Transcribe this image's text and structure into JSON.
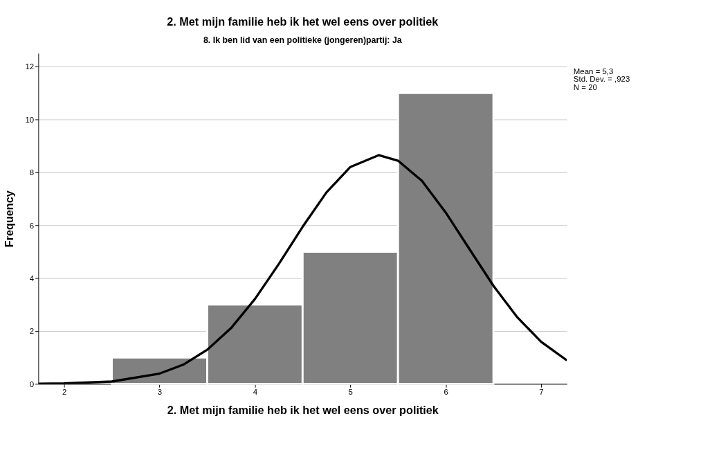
{
  "chart_data": {
    "type": "histogram",
    "title": "2. Met mijn familie heb ik het wel eens over politiek",
    "subtitle": "8. Ik ben lid van een politieke (jongeren)partij: Ja",
    "xlabel": "2. Met mijn familie heb ik het wel eens over politiek",
    "ylabel": "Frequency",
    "bins": [
      2.5,
      3.5,
      4.5,
      5.5,
      6.5
    ],
    "values": [
      1,
      3,
      5,
      11
    ],
    "color": "#808080",
    "series": [
      {
        "type": "line",
        "color": "#000000",
        "x": [
          1.73,
          2,
          2.5,
          3,
          3.25,
          3.5,
          3.75,
          4,
          4.25,
          4.5,
          4.75,
          5,
          5.3,
          5.5,
          5.75,
          6,
          6.25,
          6.5,
          6.75,
          7,
          7.27
        ],
        "values": [
          0.01,
          0.02,
          0.09,
          0.39,
          0.73,
          1.29,
          2.11,
          3.21,
          4.53,
          5.94,
          7.24,
          8.2,
          8.65,
          8.44,
          7.68,
          6.48,
          5.09,
          3.71,
          2.52,
          1.59,
          0.89
        ]
      }
    ],
    "xlim": [
      1.73,
      7.27
    ],
    "xticks": [
      2,
      3,
      4,
      5,
      6,
      7
    ],
    "ylim": [
      0,
      12.5
    ],
    "yticks": [
      0,
      2,
      4,
      6,
      8,
      10,
      12
    ],
    "grid": "y",
    "line_style": "solid",
    "annotations": [
      "Mean = 5,3",
      "Std. Dev. = ,923",
      "N = 20"
    ]
  }
}
